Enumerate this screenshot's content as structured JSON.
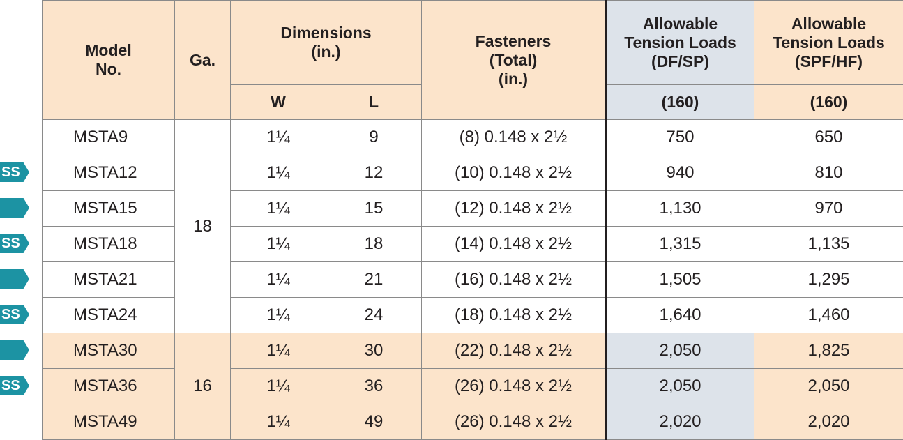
{
  "header": {
    "model": "Model\nNo.",
    "ga": "Ga.",
    "dimensions": "Dimensions\n(in.)",
    "w": "W",
    "l": "L",
    "fasteners": "Fasteners\n(Total)\n(in.)",
    "df_sp": "Allowable\nTension Loads\n(DF/SP)",
    "spf_hf": "Allowable\nTension Loads\n(SPF/HF)",
    "df_sp_sub": "(160)",
    "spf_hf_sub": "(160)"
  },
  "gauge_groups": [
    {
      "ga": "18",
      "rows": [
        {
          "model": "MSTA9",
          "w": "1¼",
          "l": "9",
          "fasteners": "(8) 0.148 x 2½",
          "df_sp": "750",
          "spf_hf": "650"
        },
        {
          "badge": "SS",
          "model": "MSTA12",
          "w": "1¼",
          "l": "12",
          "fasteners": "(10) 0.148 x 2½",
          "df_sp": "940",
          "spf_hf": "810"
        },
        {
          "model": "MSTA15",
          "w": "1¼",
          "l": "15",
          "fasteners": "(12) 0.148 x 2½",
          "df_sp": "1,130",
          "spf_hf": "970"
        },
        {
          "badge": "SS",
          "model": "MSTA18",
          "w": "1¼",
          "l": "18",
          "fasteners": "(14) 0.148 x 2½",
          "df_sp": "1,315",
          "spf_hf": "1,135"
        },
        {
          "model": "MSTA21",
          "w": "1¼",
          "l": "21",
          "fasteners": "(16) 0.148 x 2½",
          "df_sp": "1,505",
          "spf_hf": "1,295"
        },
        {
          "badge": "SS",
          "model": "MSTA24",
          "w": "1¼",
          "l": "24",
          "fasteners": "(18) 0.148 x 2½",
          "df_sp": "1,640",
          "spf_hf": "1,460"
        }
      ]
    },
    {
      "ga": "16",
      "rows": [
        {
          "model": "MSTA30",
          "w": "1¼",
          "l": "30",
          "fasteners": "(22) 0.148 x 2½",
          "df_sp": "2,050",
          "spf_hf": "1,825"
        },
        {
          "badge": "SS",
          "model": "MSTA36",
          "w": "1¼",
          "l": "36",
          "fasteners": "(26) 0.148 x 2½",
          "df_sp": "2,050",
          "spf_hf": "2,050"
        },
        {
          "model": "MSTA49",
          "w": "1¼",
          "l": "49",
          "fasteners": "(26) 0.148 x 2½",
          "df_sp": "2,020",
          "spf_hf": "2,020"
        }
      ]
    }
  ]
}
